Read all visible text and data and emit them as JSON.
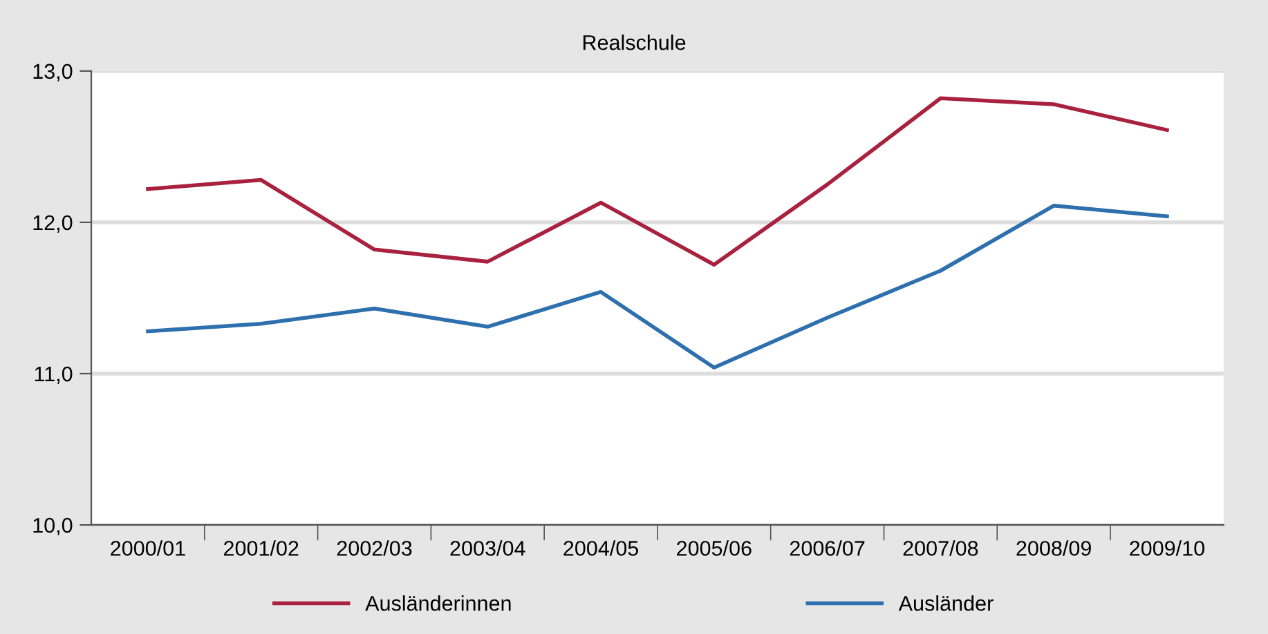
{
  "chart_data": {
    "type": "line",
    "title": "Realschule",
    "categories": [
      "2000/01",
      "2001/02",
      "2002/03",
      "2003/04",
      "2004/05",
      "2005/06",
      "2006/07",
      "2007/08",
      "2008/09",
      "2009/10"
    ],
    "series": [
      {
        "name": "Ausländerinnen",
        "color": "#a8223f",
        "values": [
          12.22,
          12.28,
          11.82,
          11.74,
          12.13,
          11.72,
          12.25,
          12.82,
          12.78,
          12.61
        ]
      },
      {
        "name": "Ausländer",
        "color": "#2e6fad",
        "values": [
          11.28,
          11.33,
          11.43,
          11.31,
          11.54,
          11.04,
          11.37,
          11.68,
          12.11,
          12.04
        ]
      }
    ],
    "ylim": [
      10,
      13
    ],
    "yticks": [
      {
        "value": 10,
        "label": "10,0"
      },
      {
        "value": 11,
        "label": "11,0"
      },
      {
        "value": 12,
        "label": "12,0"
      },
      {
        "value": 13,
        "label": "13,0"
      }
    ],
    "grid": "y",
    "legend": "bottom",
    "marker": "none",
    "line_style": "solid"
  }
}
